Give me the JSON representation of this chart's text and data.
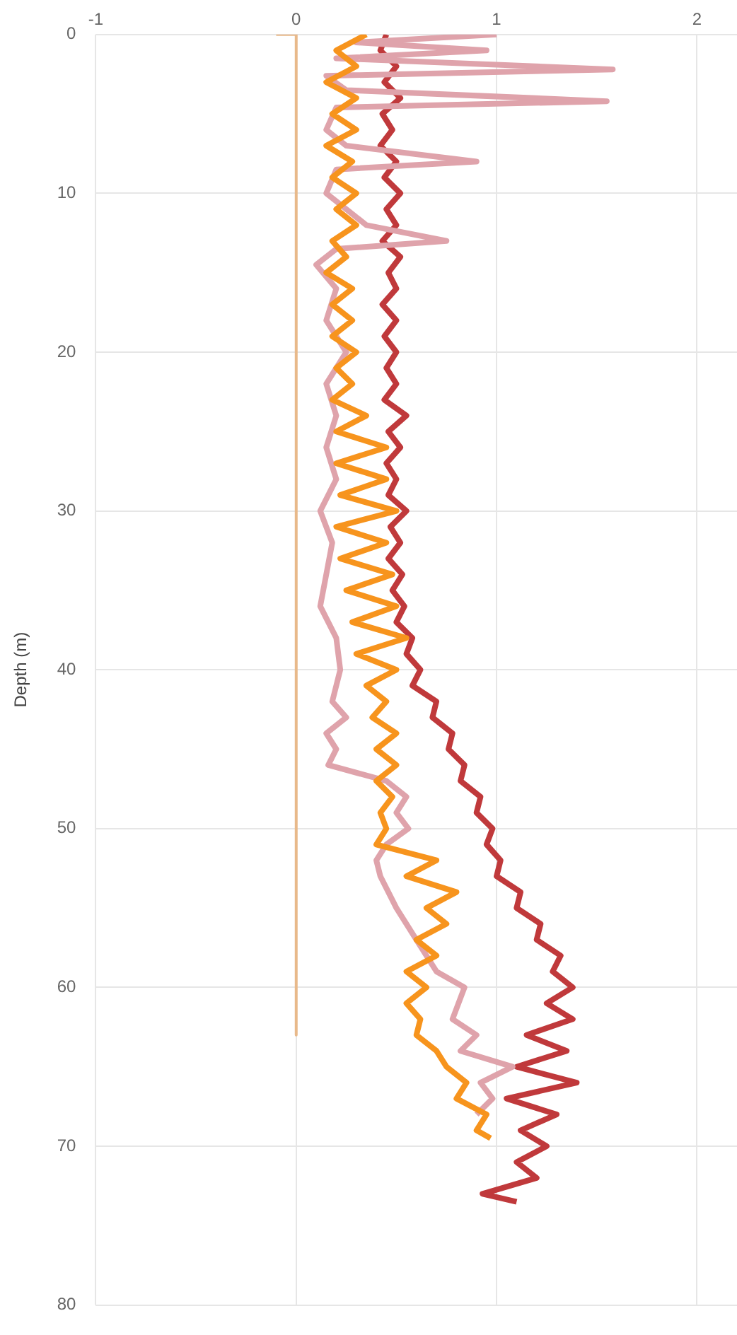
{
  "chart_data": {
    "type": "line",
    "ylabel": "Depth (m)",
    "xlim": [
      -1,
      2.2
    ],
    "xticks": [
      -1,
      0,
      1,
      2
    ],
    "ylim": [
      80,
      0
    ],
    "yticks": [
      0,
      10,
      20,
      30,
      40,
      50,
      60,
      70,
      80
    ],
    "grid": true,
    "legend": false,
    "marker": "none",
    "line_style": "solid",
    "series": [
      {
        "color": "#c0393b",
        "x": [
          0.45,
          0.42,
          0.5,
          0.44,
          0.52,
          0.43,
          0.48,
          0.42,
          0.5,
          0.44,
          0.52,
          0.45,
          0.5,
          0.43,
          0.52,
          0.46,
          0.5,
          0.43,
          0.5,
          0.44,
          0.5,
          0.45,
          0.5,
          0.44,
          0.55,
          0.46,
          0.52,
          0.45,
          0.5,
          0.46,
          0.55,
          0.47,
          0.52,
          0.46,
          0.53,
          0.48,
          0.54,
          0.5,
          0.58,
          0.55,
          0.62,
          0.58,
          0.7,
          0.68,
          0.78,
          0.76,
          0.84,
          0.82,
          0.92,
          0.9,
          0.98,
          0.95,
          1.02,
          1.0,
          1.12,
          1.1,
          1.22,
          1.2,
          1.32,
          1.28,
          1.38,
          1.25,
          1.38,
          1.15,
          1.35,
          1.1,
          1.4,
          1.05,
          1.3,
          1.12,
          1.25,
          1.1,
          1.2,
          0.93,
          1.1
        ],
        "values": [
          0,
          1,
          2,
          3,
          4,
          5,
          6,
          7,
          8,
          9,
          10,
          11,
          12,
          13,
          14,
          15,
          16,
          17,
          18,
          19,
          20,
          21,
          22,
          23,
          24,
          25,
          26,
          27,
          28,
          29,
          30,
          31,
          32,
          33,
          34,
          35,
          36,
          37,
          38,
          39,
          40,
          41,
          42,
          43,
          44,
          45,
          46,
          47,
          48,
          49,
          50,
          51,
          52,
          53,
          54,
          55,
          56,
          57,
          58,
          59,
          60,
          61,
          62,
          63,
          64,
          65,
          66,
          67,
          68,
          69,
          70,
          71,
          72,
          73,
          73.5
        ]
      },
      {
        "color": "#dfa3ab",
        "x": [
          1.0,
          0.3,
          0.95,
          0.2,
          1.58,
          0.15,
          0.25,
          1.55,
          0.2,
          0.15,
          0.25,
          0.9,
          0.2,
          0.15,
          0.25,
          0.35,
          0.75,
          0.2,
          0.1,
          0.2,
          0.15,
          0.25,
          0.15,
          0.2,
          0.15,
          0.2,
          0.12,
          0.18,
          0.15,
          0.12,
          0.2,
          0.22,
          0.18,
          0.25,
          0.15,
          0.2,
          0.16,
          0.45,
          0.55,
          0.5,
          0.56,
          0.45,
          0.4,
          0.42,
          0.5,
          0.6,
          0.7,
          0.84,
          0.78,
          0.9,
          0.82,
          1.08,
          0.92,
          0.98,
          0.9
        ],
        "values": [
          0,
          0.5,
          1,
          1.5,
          2.2,
          2.6,
          3.5,
          4.2,
          4.6,
          6,
          7,
          8,
          8.5,
          10,
          11,
          12,
          13,
          13.5,
          14.5,
          16,
          18,
          20,
          22,
          24,
          26,
          28,
          30,
          32,
          34,
          36,
          38,
          40,
          42,
          43,
          44,
          45,
          46,
          47,
          48,
          49,
          50,
          51,
          52,
          53,
          55,
          57,
          59,
          60,
          62,
          63,
          64,
          65,
          66,
          67,
          68
        ]
      },
      {
        "color": "#f7941d",
        "x": [
          0.35,
          0.2,
          0.3,
          0.15,
          0.3,
          0.18,
          0.3,
          0.15,
          0.28,
          0.18,
          0.3,
          0.2,
          0.3,
          0.18,
          0.25,
          0.15,
          0.28,
          0.18,
          0.28,
          0.18,
          0.3,
          0.2,
          0.28,
          0.18,
          0.35,
          0.2,
          0.45,
          0.2,
          0.45,
          0.22,
          0.5,
          0.2,
          0.45,
          0.22,
          0.48,
          0.25,
          0.5,
          0.28,
          0.55,
          0.3,
          0.5,
          0.35,
          0.45,
          0.38,
          0.5,
          0.4,
          0.5,
          0.4,
          0.48,
          0.42,
          0.45,
          0.4,
          0.7,
          0.55,
          0.8,
          0.65,
          0.75,
          0.6,
          0.7,
          0.55,
          0.65,
          0.55,
          0.62,
          0.6,
          0.7,
          0.75,
          0.85,
          0.8,
          0.95,
          0.9,
          0.97
        ],
        "values": [
          0,
          1,
          2,
          3,
          4,
          5,
          6,
          7,
          8,
          9,
          10,
          11,
          12,
          13,
          14,
          15,
          16,
          17,
          18,
          19,
          20,
          21,
          22,
          23,
          24,
          25,
          26,
          27,
          28,
          29,
          30,
          31,
          32,
          33,
          34,
          35,
          36,
          37,
          38,
          39,
          40,
          41,
          42,
          43,
          44,
          45,
          46,
          47,
          48,
          49,
          50,
          51,
          52,
          53,
          54,
          55,
          56,
          57,
          58,
          59,
          60,
          61,
          62,
          63,
          64,
          65,
          66,
          67,
          68,
          69,
          69.5
        ]
      },
      {
        "color": "#e8b98a",
        "x": [
          -0.1,
          0,
          0
        ],
        "values": [
          0,
          0,
          63
        ]
      }
    ]
  }
}
